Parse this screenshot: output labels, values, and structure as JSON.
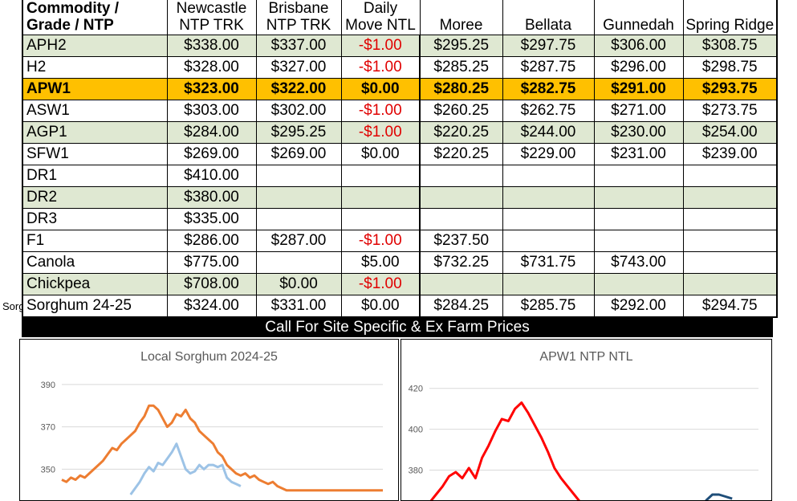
{
  "table": {
    "headers": [
      "Commodity / Grade / NTP",
      "Newcastle NTP TRK",
      "Brisbane NTP TRK",
      "Daily Move NTL",
      "Moree",
      "Bellata",
      "Gunnedah",
      "Spring Ridge"
    ],
    "rows": [
      {
        "grade": "APH2",
        "newcastle": "$338.00",
        "brisbane": "$337.00",
        "move": "-$1.00",
        "moree": "$295.25",
        "bellata": "$297.75",
        "gunnedah": "$306.00",
        "spring_ridge": "$308.75",
        "style": "green"
      },
      {
        "grade": "H2",
        "newcastle": "$328.00",
        "brisbane": "$327.00",
        "move": "-$1.00",
        "moree": "$285.25",
        "bellata": "$287.75",
        "gunnedah": "$296.00",
        "spring_ridge": "$298.75",
        "style": "white"
      },
      {
        "grade": "APW1",
        "newcastle": "$323.00",
        "brisbane": "$322.00",
        "move": "$0.00",
        "moree": "$280.25",
        "bellata": "$282.75",
        "gunnedah": "$291.00",
        "spring_ridge": "$293.75",
        "style": "gold"
      },
      {
        "grade": "ASW1",
        "newcastle": "$303.00",
        "brisbane": "$302.00",
        "move": "-$1.00",
        "moree": "$260.25",
        "bellata": "$262.75",
        "gunnedah": "$271.00",
        "spring_ridge": "$273.75",
        "style": "white"
      },
      {
        "grade": "AGP1",
        "newcastle": "$284.00",
        "brisbane": "$295.25",
        "move": "-$1.00",
        "moree": "$220.25",
        "bellata": "$244.00",
        "gunnedah": "$230.00",
        "spring_ridge": "$254.00",
        "style": "green"
      },
      {
        "grade": "SFW1",
        "newcastle": "$269.00",
        "brisbane": "$269.00",
        "move": "$0.00",
        "moree": "$220.25",
        "bellata": "$229.00",
        "gunnedah": "$231.00",
        "spring_ridge": "$239.00",
        "style": "white"
      },
      {
        "grade": "DR1",
        "newcastle": "$410.00",
        "brisbane": "",
        "move": "",
        "moree": "",
        "bellata": "",
        "gunnedah": "",
        "spring_ridge": "",
        "style": "white"
      },
      {
        "grade": "DR2",
        "newcastle": "$380.00",
        "brisbane": "",
        "move": "",
        "moree": "",
        "bellata": "",
        "gunnedah": "",
        "spring_ridge": "",
        "style": "green"
      },
      {
        "grade": "DR3",
        "newcastle": "$335.00",
        "brisbane": "",
        "move": "",
        "moree": "",
        "bellata": "",
        "gunnedah": "",
        "spring_ridge": "",
        "style": "white"
      },
      {
        "grade": "F1",
        "newcastle": "$286.00",
        "brisbane": "$287.00",
        "move": "-$1.00",
        "moree": "$237.50",
        "bellata": "",
        "gunnedah": "",
        "spring_ridge": "",
        "style": "white"
      },
      {
        "grade": "Canola",
        "newcastle": "$775.00",
        "brisbane": "",
        "move": "$5.00",
        "moree": "$732.25",
        "bellata": "$731.75",
        "gunnedah": "$743.00",
        "spring_ridge": "",
        "style": "white"
      },
      {
        "grade": "Chickpea",
        "newcastle": "$708.00",
        "brisbane": "$0.00",
        "move": "-$1.00",
        "moree": "",
        "bellata": "",
        "gunnedah": "",
        "spring_ridge": "",
        "style": "green"
      },
      {
        "grade": "Sorghum 24-25",
        "newcastle": "$324.00",
        "brisbane": "$331.00",
        "move": "$0.00",
        "moree": "$284.25",
        "bellata": "$285.75",
        "gunnedah": "$292.00",
        "spring_ridge": "$294.75",
        "style": "white"
      }
    ]
  },
  "cutoff_label": "Sorg",
  "banner": "Call For Site Specific & Ex Farm Prices",
  "colors": {
    "highlight": "#ffc000",
    "green_row": "#dfe8d2",
    "negative": "#e00000",
    "orange_series": "#ed7d31",
    "blue_series": "#9dc3e6",
    "red_series": "#ff0000",
    "teal_series": "#1f4e79"
  },
  "chart_data": [
    {
      "type": "line",
      "title": "Local Sorghum 2024-25",
      "ylim": [
        338,
        393
      ],
      "yticks": [
        350,
        370,
        390
      ],
      "grid": true,
      "x": [
        0,
        1,
        2,
        3,
        4,
        5,
        6,
        7,
        8,
        9,
        10,
        11,
        12,
        13,
        14,
        15,
        16,
        17,
        18,
        19,
        20,
        21,
        22,
        23,
        24,
        25,
        26,
        27,
        28,
        29,
        30,
        31,
        32,
        33,
        34,
        35,
        36,
        37,
        38,
        39,
        40,
        41,
        42,
        43,
        44,
        45,
        46,
        47,
        48,
        49,
        50,
        51,
        52,
        53,
        54,
        55,
        56,
        57,
        58,
        59,
        60,
        61,
        62,
        63,
        64,
        65,
        66,
        67,
        68,
        69,
        70
      ],
      "series": [
        {
          "values": [
            345,
            344,
            346,
            345,
            347,
            346,
            348,
            350,
            352,
            354,
            357,
            360,
            359,
            362,
            364,
            366,
            368,
            372,
            375,
            380,
            380,
            378,
            374,
            370,
            372,
            376,
            375,
            378,
            374,
            372,
            368,
            366,
            364,
            362,
            358,
            356,
            352,
            350,
            348,
            347,
            348,
            346,
            347,
            345,
            344,
            343,
            344,
            342,
            341,
            340,
            340,
            340,
            340,
            340,
            340,
            340,
            340,
            340,
            340,
            340,
            340,
            340,
            340,
            340,
            340,
            340,
            340,
            340,
            340,
            340,
            340
          ]
        },
        {
          "values": [
            null,
            null,
            null,
            null,
            null,
            null,
            null,
            null,
            null,
            null,
            null,
            null,
            null,
            null,
            null,
            338,
            341,
            344,
            348,
            351,
            349,
            353,
            352,
            355,
            358,
            362,
            356,
            350,
            348,
            349,
            352,
            350,
            352,
            352,
            351,
            352,
            346,
            344,
            343,
            342,
            null,
            null,
            null,
            null,
            null,
            null,
            null,
            null,
            null,
            null,
            null,
            null,
            null,
            null,
            null,
            null,
            null,
            null,
            null,
            null,
            null,
            null,
            null,
            null,
            null,
            null,
            null,
            null,
            null,
            null,
            null
          ]
        }
      ]
    },
    {
      "type": "line",
      "title": "APW1 NTP NTL",
      "ylim": [
        368,
        425
      ],
      "yticks": [
        380,
        400,
        420
      ],
      "grid": true,
      "x": [
        0,
        1,
        2,
        3,
        4,
        5,
        6,
        7,
        8,
        9,
        10,
        11,
        12,
        13,
        14,
        15,
        16,
        17,
        18,
        19,
        20,
        21,
        22,
        23,
        24,
        25,
        26,
        27,
        28,
        29,
        30,
        31,
        32,
        33,
        34,
        35,
        36,
        37,
        38,
        39,
        40,
        41,
        42,
        43,
        44,
        45,
        46,
        47,
        48,
        49,
        50
      ],
      "series": [
        {
          "values": [
            364,
            368,
            372,
            377,
            379,
            376,
            381,
            376,
            386,
            392,
            399,
            405,
            404,
            410,
            413,
            408,
            402,
            396,
            389,
            381,
            376,
            372,
            368,
            364,
            null,
            null,
            null,
            null,
            null,
            null,
            null,
            null,
            null,
            null,
            null,
            null,
            null,
            null,
            null,
            null,
            null,
            null,
            null,
            null,
            null,
            null,
            null,
            null,
            null,
            null,
            null
          ]
        },
        {
          "values": [
            null,
            null,
            null,
            null,
            null,
            null,
            null,
            null,
            null,
            null,
            null,
            null,
            null,
            null,
            null,
            null,
            null,
            null,
            null,
            null,
            null,
            null,
            null,
            null,
            null,
            null,
            null,
            null,
            null,
            null,
            null,
            null,
            null,
            null,
            null,
            null,
            null,
            null,
            null,
            null,
            null,
            null,
            365,
            368,
            368,
            367,
            366,
            null,
            null,
            null,
            null
          ]
        }
      ]
    }
  ]
}
